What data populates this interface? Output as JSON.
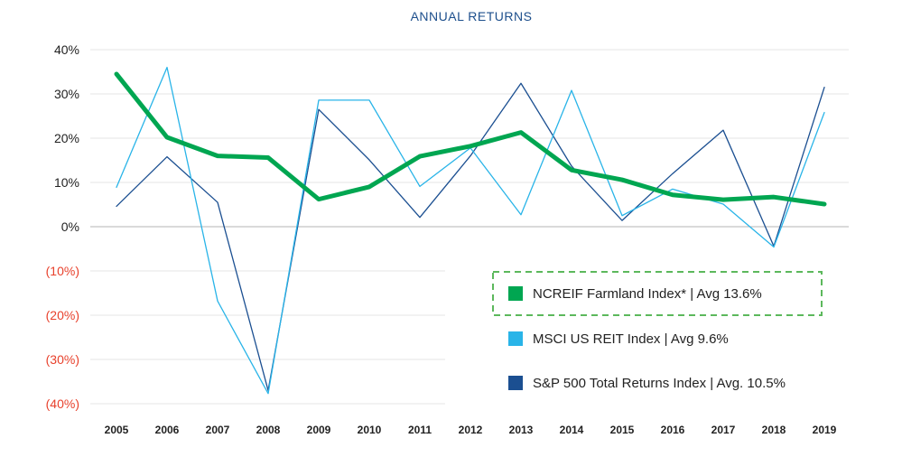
{
  "chart_data": {
    "type": "line",
    "title": "ANNUAL RETURNS",
    "xlabel": "",
    "ylabel": "",
    "categories": [
      "2005",
      "2006",
      "2007",
      "2008",
      "2009",
      "2010",
      "2011",
      "2012",
      "2013",
      "2014",
      "2015",
      "2016",
      "2017",
      "2018",
      "2019"
    ],
    "ylim": [
      -40,
      40
    ],
    "yticks": [
      40,
      30,
      20,
      10,
      0,
      -10,
      -20,
      -30,
      -40
    ],
    "ytick_labels": [
      "40%",
      "30%",
      "20%",
      "10%",
      "0%",
      "(10%)",
      "(20%)",
      "(30%)",
      "(40%)"
    ],
    "grid": true,
    "legend_position": "bottom-right",
    "series": [
      {
        "name": "NCREIF Farmland Index*",
        "legend_label": "NCREIF Farmland Index*  |  Avg 13.6%",
        "color": "#00a651",
        "values": [
          34.5,
          20.2,
          16.0,
          15.6,
          6.2,
          9.0,
          15.9,
          18.2,
          21.3,
          12.8,
          10.6,
          7.2,
          6.1,
          6.7,
          5.1
        ]
      },
      {
        "name": "MSCI US REIT Index",
        "legend_label": "MSCI US REIT Index  |  Avg 9.6%",
        "color": "#29b4e8",
        "values": [
          8.9,
          36.0,
          -16.8,
          -37.7,
          28.6,
          28.6,
          9.1,
          17.8,
          2.7,
          30.8,
          2.5,
          8.5,
          5.1,
          -4.6,
          25.8
        ]
      },
      {
        "name": "S&P 500 Total Returns Index",
        "legend_label": "S&P 500 Total Returns Index  |  Avg. 10.5%",
        "color": "#1b4f91",
        "values": [
          4.6,
          15.8,
          5.5,
          -37.0,
          26.5,
          15.1,
          2.1,
          16.0,
          32.4,
          13.7,
          1.4,
          12.0,
          21.8,
          -4.4,
          31.5
        ]
      }
    ],
    "colors": {
      "negative_tick": "#e8412c",
      "positive_tick": "#222222",
      "grid": "#e6e6e6",
      "zero_line": "#b5b5b5",
      "legend_highlight_border": "#5cb85c"
    }
  }
}
